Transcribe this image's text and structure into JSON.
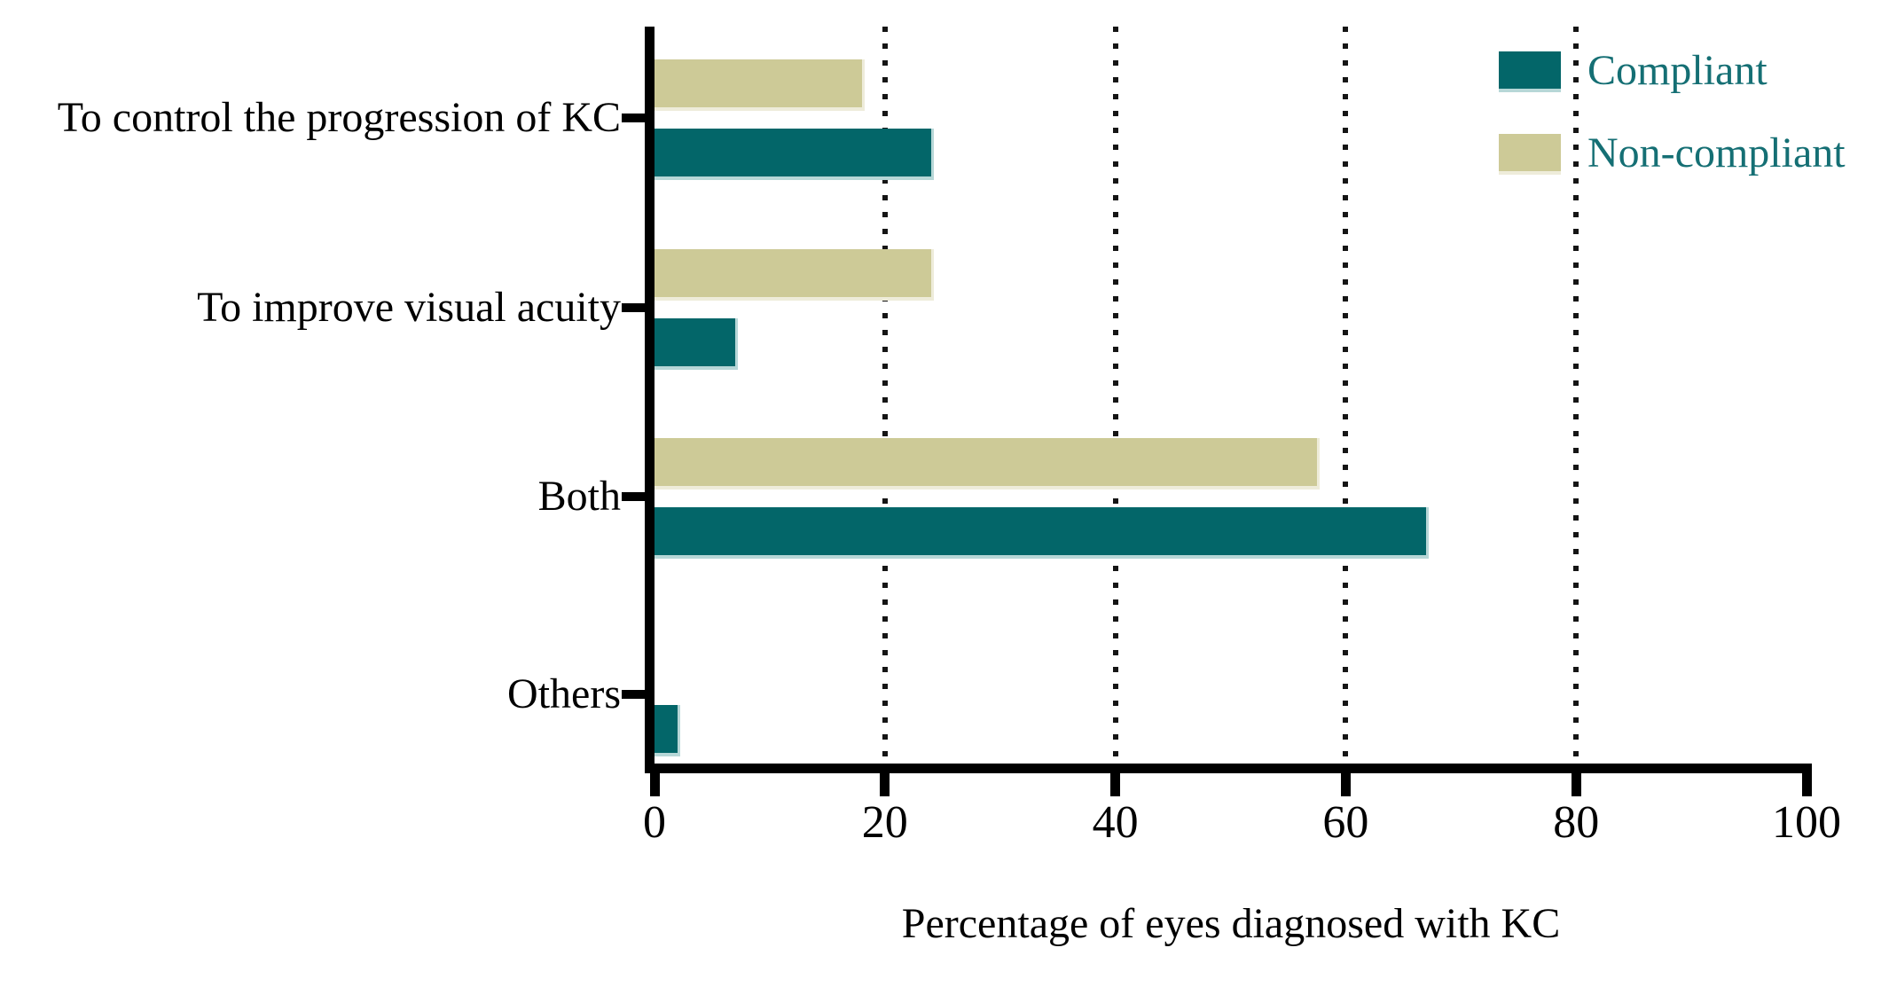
{
  "figure": {
    "background": "#ffffff"
  },
  "chart_data": {
    "type": "bar",
    "orientation": "horizontal",
    "title": "",
    "xlabel": "Percentage of eyes diagnosed with KC",
    "ylabel": "",
    "categories": [
      "To control the progression of KC",
      "To improve visual acuity",
      "Both",
      "Others"
    ],
    "series": [
      {
        "name": "Compliant",
        "color": "#036669",
        "edge_color": "#b7d7d7",
        "values": [
          24,
          7,
          67,
          2
        ]
      },
      {
        "name": "Non-compliant",
        "color": "#cdca97",
        "edge_color": "#eeecda",
        "values": [
          18,
          24,
          57.5,
          0
        ]
      }
    ],
    "xlim": [
      0,
      100
    ],
    "xticks": [
      0,
      20,
      40,
      60,
      80,
      100
    ],
    "gridlines_x": [
      20,
      40,
      60,
      80
    ],
    "grid_style": "dotted",
    "legend_position": "top-right",
    "legend_text_color": "#156f74",
    "axis_color": "#000000"
  }
}
